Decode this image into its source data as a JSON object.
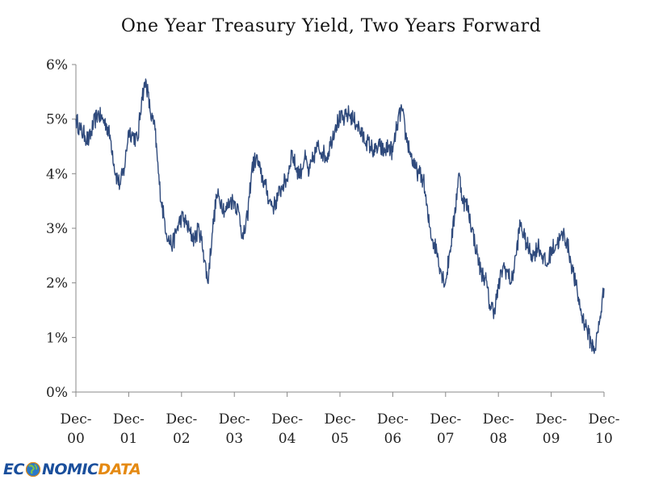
{
  "chart_data": {
    "type": "line",
    "title": "One Year Treasury Yield, Two Years Forward",
    "xlabel": "",
    "ylabel": "",
    "y_tick_labels": [
      "0%",
      "1%",
      "2%",
      "3%",
      "4%",
      "5%",
      "6%"
    ],
    "x_tick_labels": [
      [
        "Dec-",
        "00"
      ],
      [
        "Dec-",
        "01"
      ],
      [
        "Dec-",
        "02"
      ],
      [
        "Dec-",
        "03"
      ],
      [
        "Dec-",
        "04"
      ],
      [
        "Dec-",
        "05"
      ],
      [
        "Dec-",
        "06"
      ],
      [
        "Dec-",
        "07"
      ],
      [
        "Dec-",
        "08"
      ],
      [
        "Dec-",
        "09"
      ],
      [
        "Dec-",
        "10"
      ]
    ],
    "xlim": [
      "2000-12-01",
      "2010-12-01"
    ],
    "ylim": [
      0,
      6
    ],
    "grid": false,
    "line_color": "#2f4a7c",
    "series": [
      {
        "x": [
          "2000-12-01",
          "2001-01-01",
          "2001-02-01",
          "2001-03-01",
          "2001-04-01",
          "2001-05-01",
          "2001-06-01",
          "2001-07-01",
          "2001-08-01",
          "2001-09-01",
          "2001-10-01",
          "2001-11-01",
          "2001-12-01",
          "2002-01-01",
          "2002-02-01",
          "2002-03-01",
          "2002-04-01",
          "2002-05-01",
          "2002-06-01",
          "2002-07-01",
          "2002-08-01",
          "2002-09-01",
          "2002-10-01",
          "2002-11-01",
          "2002-12-01",
          "2003-01-01",
          "2003-02-01",
          "2003-03-01",
          "2003-04-01",
          "2003-05-01",
          "2003-06-01",
          "2003-07-01",
          "2003-08-01",
          "2003-09-01",
          "2003-10-01",
          "2003-11-01",
          "2003-12-01",
          "2004-01-01",
          "2004-02-01",
          "2004-03-01",
          "2004-04-01",
          "2004-05-01",
          "2004-06-01",
          "2004-07-01",
          "2004-08-01",
          "2004-09-01",
          "2004-10-01",
          "2004-11-01",
          "2004-12-01",
          "2005-01-01",
          "2005-02-01",
          "2005-03-01",
          "2005-04-01",
          "2005-05-01",
          "2005-06-01",
          "2005-07-01",
          "2005-08-01",
          "2005-09-01",
          "2005-10-01",
          "2005-11-01",
          "2005-12-01",
          "2006-01-01",
          "2006-02-01",
          "2006-03-01",
          "2006-04-01",
          "2006-05-01",
          "2006-06-01",
          "2006-07-01",
          "2006-08-01",
          "2006-09-01",
          "2006-10-01",
          "2006-11-01",
          "2006-12-01",
          "2007-01-01",
          "2007-02-01",
          "2007-03-01",
          "2007-04-01",
          "2007-05-01",
          "2007-06-01",
          "2007-07-01",
          "2007-08-01",
          "2007-09-01",
          "2007-10-01",
          "2007-11-01",
          "2007-12-01",
          "2008-01-01",
          "2008-02-01",
          "2008-03-01",
          "2008-04-01",
          "2008-05-01",
          "2008-06-01",
          "2008-07-01",
          "2008-08-01",
          "2008-09-01",
          "2008-10-01",
          "2008-11-01",
          "2008-12-01",
          "2009-01-01",
          "2009-02-01",
          "2009-03-01",
          "2009-04-01",
          "2009-05-01",
          "2009-06-01",
          "2009-07-01",
          "2009-08-01",
          "2009-09-01",
          "2009-10-01",
          "2009-11-01",
          "2009-12-01",
          "2010-01-01",
          "2010-02-01",
          "2010-03-01",
          "2010-04-01",
          "2010-05-01",
          "2010-06-01",
          "2010-07-01",
          "2010-08-01",
          "2010-09-01",
          "2010-10-01",
          "2010-11-01",
          "2010-12-01"
        ],
        "values": [
          5.0,
          4.8,
          4.7,
          4.6,
          4.9,
          5.1,
          5.0,
          4.9,
          4.6,
          4.0,
          3.8,
          4.1,
          4.8,
          4.7,
          4.6,
          5.4,
          5.7,
          5.1,
          4.8,
          3.8,
          3.2,
          2.8,
          2.7,
          3.0,
          3.2,
          3.1,
          2.9,
          2.8,
          3.0,
          2.6,
          2.0,
          2.9,
          3.6,
          3.5,
          3.3,
          3.5,
          3.5,
          3.3,
          2.8,
          3.2,
          4.1,
          4.3,
          4.0,
          3.8,
          3.5,
          3.4,
          3.6,
          3.8,
          3.9,
          4.4,
          4.1,
          4.0,
          4.3,
          4.0,
          4.3,
          4.5,
          4.4,
          4.3,
          4.6,
          4.9,
          5.0,
          5.0,
          5.1,
          5.0,
          4.9,
          4.7,
          4.6,
          4.5,
          4.4,
          4.5,
          4.4,
          4.5,
          4.4,
          4.9,
          5.2,
          4.7,
          4.4,
          4.1,
          4.0,
          3.9,
          3.2,
          2.8,
          2.6,
          2.2,
          2.0,
          2.6,
          3.2,
          4.0,
          3.5,
          3.4,
          3.0,
          2.6,
          2.2,
          2.1,
          1.6,
          1.5,
          1.9,
          2.3,
          2.2,
          2.0,
          2.5,
          3.1,
          2.8,
          2.6,
          2.5,
          2.7,
          2.5,
          2.3,
          2.6,
          2.7,
          2.8,
          2.9,
          2.6,
          2.2,
          1.8,
          1.4,
          1.2,
          0.9,
          0.8,
          1.3,
          1.9
        ]
      }
    ]
  },
  "logo": {
    "part1": "EC",
    "part2": "NOMIC",
    "part3": "DATA"
  }
}
